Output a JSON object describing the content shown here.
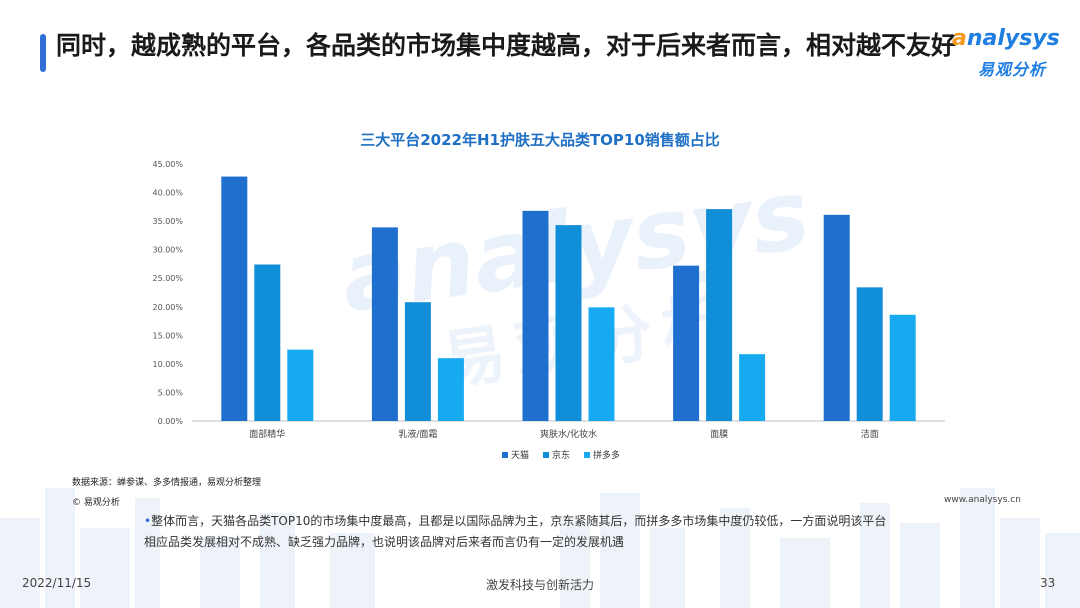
{
  "slide": {
    "title": "同时，越成熟的平台，各品类的市场集中度越高，对于后来者而言，相对越不友好",
    "logo_brand_first": "a",
    "logo_brand_rest": "nalysys",
    "logo_cn": "易观分析",
    "watermark_brand": "analysys",
    "watermark_cn": "易观分析",
    "source": "数据来源：蝉参谋、多多情报通，易观分析整理",
    "copyright": "© 易观分析",
    "site": "www.analysys.cn",
    "note": "整体而言，天猫各品类TOP10的市场集中度最高，且都是以国际品牌为主，京东紧随其后，而拼多多市场集中度仍较低，一方面说明该平台相应品类发展相对不成熟、缺乏强力品牌，也说明该品牌对后来者而言仍有一定的发展机遇",
    "date": "2022/11/15",
    "slogan": "激发科技与创新活力",
    "page_number": "33",
    "colors": {
      "accent": "#2f6fd6",
      "brand_blue": "#1f7ee0",
      "brand_orange": "#f39a1e"
    }
  },
  "chart_data": {
    "type": "bar",
    "title": "三大平台2022年H1护肤五大品类TOP10销售额占比",
    "categories": [
      "面部精华",
      "乳液/面霜",
      "爽肤水/化妆水",
      "面膜",
      "洁面"
    ],
    "series": [
      {
        "name": "天猫",
        "color": "#1f6fcf",
        "values": [
          42.8,
          33.9,
          36.8,
          27.2,
          36.1
        ]
      },
      {
        "name": "京东",
        "color": "#118ed8",
        "values": [
          27.4,
          20.8,
          34.3,
          37.1,
          23.4
        ]
      },
      {
        "name": "拼多多",
        "color": "#18aaf0",
        "values": [
          12.5,
          11.0,
          19.9,
          11.7,
          18.6
        ]
      }
    ],
    "ylim": [
      0,
      45
    ],
    "yticks": [
      "0.00%",
      "5.00%",
      "10.00%",
      "15.00%",
      "20.00%",
      "25.00%",
      "30.00%",
      "35.00%",
      "40.00%",
      "45.00%"
    ],
    "legend_position": "bottom",
    "grid": false
  }
}
